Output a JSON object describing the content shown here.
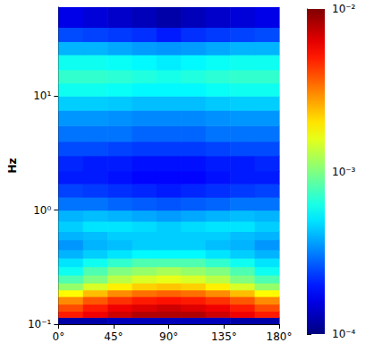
{
  "chart_data": {
    "type": "heatmap",
    "y_label": "Hz",
    "log": "y",
    "xlim": [
      0,
      180
    ],
    "xticks": [
      {
        "value": 0,
        "label": "0°"
      },
      {
        "value": 45,
        "label": "45°"
      },
      {
        "value": 90,
        "label": "90°"
      },
      {
        "value": 135,
        "label": "135°"
      },
      {
        "value": 180,
        "label": "180°"
      }
    ],
    "ylim": [
      0.1,
      60
    ],
    "yticks": [
      {
        "value": 0.1,
        "label": "10⁻¹"
      },
      {
        "value": 1,
        "label": "10⁰"
      },
      {
        "value": 10,
        "label": "10¹"
      }
    ],
    "x_bins": [
      0,
      20,
      40,
      60,
      80,
      100,
      120,
      140,
      160,
      180
    ],
    "y_bins": [
      0.1,
      0.115,
      0.13,
      0.15,
      0.175,
      0.2,
      0.23,
      0.27,
      0.32,
      0.38,
      0.45,
      0.55,
      0.65,
      0.8,
      1.0,
      1.3,
      1.7,
      2.2,
      3,
      4,
      5.5,
      7.5,
      10,
      13,
      17,
      23,
      30,
      40,
      60
    ],
    "cells": [
      [
        0.00012,
        0.00012,
        0.00013,
        0.00013,
        0.00013,
        0.00013,
        0.00013,
        0.00012,
        0.00012
      ],
      [
        0.005,
        0.006,
        0.007,
        0.008,
        0.008,
        0.008,
        0.007,
        0.006,
        0.005
      ],
      [
        0.004,
        0.005,
        0.006,
        0.0065,
        0.007,
        0.0065,
        0.006,
        0.005,
        0.004
      ],
      [
        0.003,
        0.0038,
        0.0045,
        0.005,
        0.0052,
        0.005,
        0.0045,
        0.0038,
        0.003
      ],
      [
        0.0018,
        0.0024,
        0.003,
        0.0034,
        0.0036,
        0.0034,
        0.003,
        0.0024,
        0.0018
      ],
      [
        0.0011,
        0.0015,
        0.0019,
        0.0022,
        0.0023,
        0.0022,
        0.0019,
        0.0015,
        0.0011
      ],
      [
        0.0008,
        0.001,
        0.0013,
        0.0015,
        0.0016,
        0.0015,
        0.0013,
        0.001,
        0.0008
      ],
      [
        0.0006,
        0.0008,
        0.001,
        0.0011,
        0.0012,
        0.0011,
        0.001,
        0.0008,
        0.0006
      ],
      [
        0.0005,
        0.0006,
        0.0007,
        0.0008,
        0.0008,
        0.0008,
        0.0007,
        0.0006,
        0.0005
      ],
      [
        0.0004,
        0.00045,
        0.0005,
        0.00055,
        0.00055,
        0.00055,
        0.0005,
        0.00045,
        0.0004
      ],
      [
        0.00035,
        0.0004,
        0.00042,
        0.00045,
        0.00045,
        0.00045,
        0.00042,
        0.0004,
        0.00035
      ],
      [
        0.0004,
        0.00042,
        0.00045,
        0.00045,
        0.00045,
        0.00045,
        0.00045,
        0.00042,
        0.0004
      ],
      [
        0.00045,
        0.0005,
        0.0005,
        0.00048,
        0.00045,
        0.00048,
        0.0005,
        0.0005,
        0.00045
      ],
      [
        0.0004,
        0.00042,
        0.0004,
        0.00038,
        0.00036,
        0.00038,
        0.0004,
        0.00042,
        0.0004
      ],
      [
        0.0003,
        0.0003,
        0.00028,
        0.00027,
        0.00026,
        0.00027,
        0.00028,
        0.0003,
        0.0003
      ],
      [
        0.00024,
        0.00023,
        0.00022,
        0.00021,
        0.0002,
        0.00021,
        0.00022,
        0.00023,
        0.00024
      ],
      [
        0.0002,
        0.0002,
        0.00019,
        0.00018,
        0.00018,
        0.00018,
        0.00019,
        0.0002,
        0.0002
      ],
      [
        0.00021,
        0.0002,
        0.0002,
        0.00019,
        0.00019,
        0.00019,
        0.0002,
        0.0002,
        0.00021
      ],
      [
        0.00025,
        0.00025,
        0.00024,
        0.00023,
        0.00023,
        0.00023,
        0.00024,
        0.00025,
        0.00025
      ],
      [
        0.0003,
        0.0003,
        0.0003,
        0.00028,
        0.00028,
        0.00028,
        0.0003,
        0.0003,
        0.0003
      ],
      [
        0.00035,
        0.00035,
        0.00034,
        0.00033,
        0.00033,
        0.00033,
        0.00034,
        0.00035,
        0.00035
      ],
      [
        0.00045,
        0.00045,
        0.00044,
        0.00042,
        0.00042,
        0.00042,
        0.00044,
        0.00045,
        0.00045
      ],
      [
        0.0006,
        0.0006,
        0.00058,
        0.00055,
        0.00055,
        0.00055,
        0.00058,
        0.0006,
        0.0006
      ],
      [
        0.0007,
        0.0007,
        0.00068,
        0.00065,
        0.00062,
        0.00065,
        0.00068,
        0.0007,
        0.0007
      ],
      [
        0.0006,
        0.0006,
        0.00058,
        0.00055,
        0.00052,
        0.00055,
        0.00058,
        0.0006,
        0.0006
      ],
      [
        0.0004,
        0.0004,
        0.00038,
        0.00036,
        0.00035,
        0.00036,
        0.00038,
        0.0004,
        0.0004
      ],
      [
        0.00025,
        0.00024,
        0.00023,
        0.00022,
        0.0002,
        0.00022,
        0.00023,
        0.00024,
        0.00025
      ],
      [
        0.00016,
        0.00015,
        0.00014,
        0.00013,
        0.00012,
        0.00013,
        0.00014,
        0.00015,
        0.00016
      ]
    ],
    "colorbar": {
      "lim": [
        0.0001,
        0.01
      ],
      "ticks": [
        {
          "value": 0.0001,
          "label": "10⁻⁴"
        },
        {
          "value": 0.001,
          "label": "10⁻³"
        },
        {
          "value": 0.01,
          "label": "10⁻²"
        }
      ],
      "log": true
    }
  }
}
